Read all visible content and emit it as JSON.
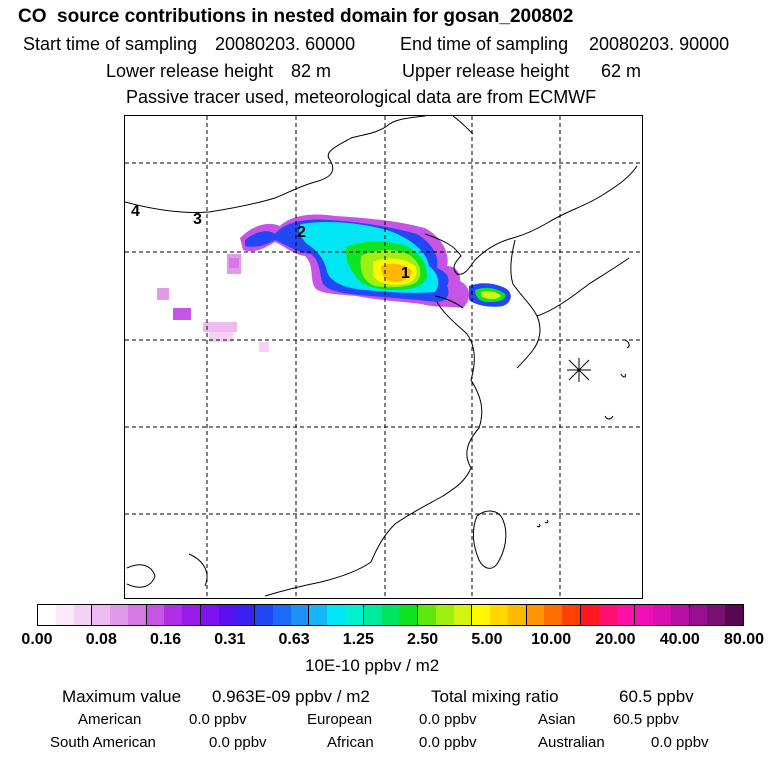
{
  "header": {
    "title": "CO  source contributions in nested domain for gosan_200802",
    "start_label": "Start time of sampling",
    "start_value": "20080203. 60000",
    "end_label": "End time of sampling",
    "end_value": "20080203. 90000",
    "lower_label": "Lower release height",
    "lower_value": "82 m",
    "upper_label": "Upper release height",
    "upper_value": "62 m",
    "note": "Passive tracer used, meteorological data are from ECMWF"
  },
  "map": {
    "markers": [
      "1",
      "2",
      "3",
      "4"
    ],
    "station_symbol": "✳"
  },
  "colorbar": {
    "colors": [
      "#ffffff",
      "#fbe8fb",
      "#f5d2f5",
      "#eebaf0",
      "#e29bea",
      "#d678e6",
      "#c655e6",
      "#b02ee6",
      "#9a1aea",
      "#7c12ec",
      "#5a12f0",
      "#3a22f4",
      "#2248f6",
      "#1a6cf8",
      "#1a92f8",
      "#14b8f8",
      "#00e6f4",
      "#00f0d0",
      "#00ec9c",
      "#00e460",
      "#10e420",
      "#5ee810",
      "#9ef010",
      "#d4f410",
      "#fff800",
      "#ffd800",
      "#ffb800",
      "#ff9400",
      "#ff6e00",
      "#ff4000",
      "#ff1820",
      "#ff1070",
      "#ff10a4",
      "#f010b4",
      "#d810b4",
      "#b810a4",
      "#981090",
      "#781070",
      "#580850"
    ],
    "ticks": [
      "0.00",
      "0.08",
      "0.16",
      "0.31",
      "0.63",
      "1.25",
      "2.50",
      "5.00",
      "10.00",
      "20.00",
      "40.00",
      "80.00"
    ],
    "unit": "10E-10 ppbv / m2"
  },
  "summary": {
    "max_label": "Maximum value",
    "max_value": "0.963E-09 ppbv / m2",
    "total_label": "Total mixing ratio",
    "total_value": "60.5 ppbv",
    "rows": [
      {
        "a_label": "American",
        "a_value": "0.0 ppbv",
        "b_label": "European",
        "b_value": "0.0 ppbv",
        "c_label": "Asian",
        "c_value": "60.5 ppbv"
      },
      {
        "a_label": "South American",
        "a_value": "0.0 ppbv",
        "b_label": "African",
        "b_value": "0.0 ppbv",
        "c_label": "Australian",
        "c_value": "0.0 ppbv"
      }
    ]
  }
}
